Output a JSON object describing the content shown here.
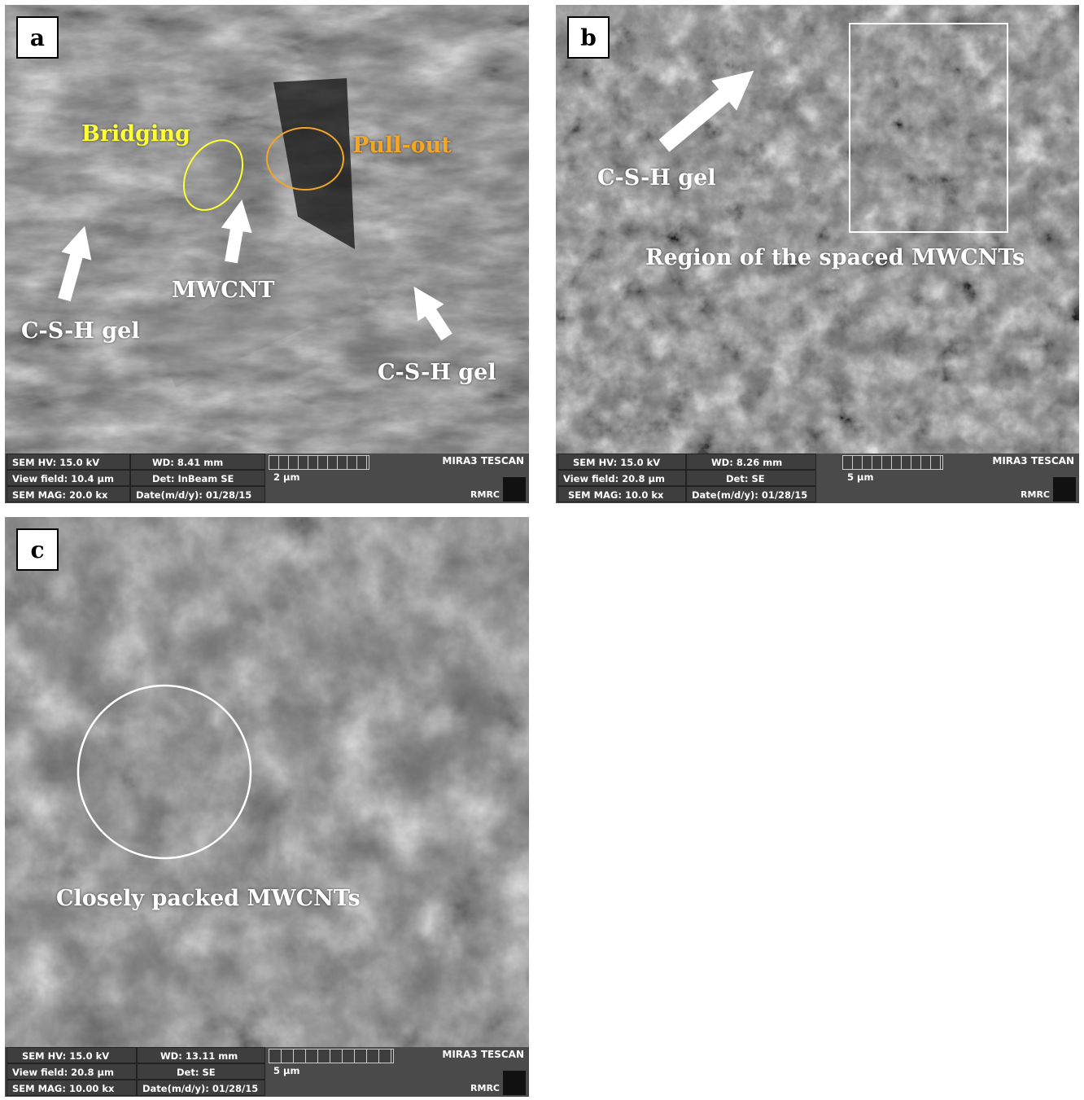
{
  "panels": {
    "a": {
      "letter": "a",
      "labels": {
        "bridging": "Bridging",
        "pullout": "Pull-out",
        "mwcnt": "MWCNT",
        "csh_left": "C-S-H gel",
        "csh_right": "C-S-H gel"
      },
      "info": {
        "hv": "SEM HV: 15.0 kV",
        "wd": "WD: 8.41 mm",
        "vf": "View field: 10.4 µm",
        "det": "Det: InBeam SE",
        "mag": "SEM MAG: 20.0 kx",
        "date": "Date(m/d/y): 01/28/15",
        "scale": "2 µm",
        "brand": "MIRA3 TESCAN",
        "lab": "RMRC"
      }
    },
    "b": {
      "letter": "b",
      "labels": {
        "csh": "C-S-H gel",
        "region": "Region of the spaced MWCNTs"
      },
      "info": {
        "hv": "SEM HV: 15.0 kV",
        "wd": "WD: 8.26 mm",
        "vf": "View field: 20.8 µm",
        "det": "Det: SE",
        "mag": "SEM MAG: 10.0 kx",
        "date": "Date(m/d/y): 01/28/15",
        "scale": "5 µm",
        "brand": "MIRA3 TESCAN",
        "lab": "RMRC"
      }
    },
    "c": {
      "letter": "c",
      "labels": {
        "packed": "Closely packed MWCNTs"
      },
      "info": {
        "hv": "SEM HV: 15.0 kV",
        "wd": "WD: 13.11 mm",
        "vf": "View field: 20.8 µm",
        "det": "Det: SE",
        "mag": "SEM MAG: 10.00 kx",
        "date": "Date(m/d/y): 01/28/15",
        "scale": "5 µm",
        "brand": "MIRA3 TESCAN",
        "lab": "RMRC"
      }
    }
  },
  "colors": {
    "bridging": "#ffff33",
    "pullout": "#f5a623",
    "white": "#ffffff"
  }
}
